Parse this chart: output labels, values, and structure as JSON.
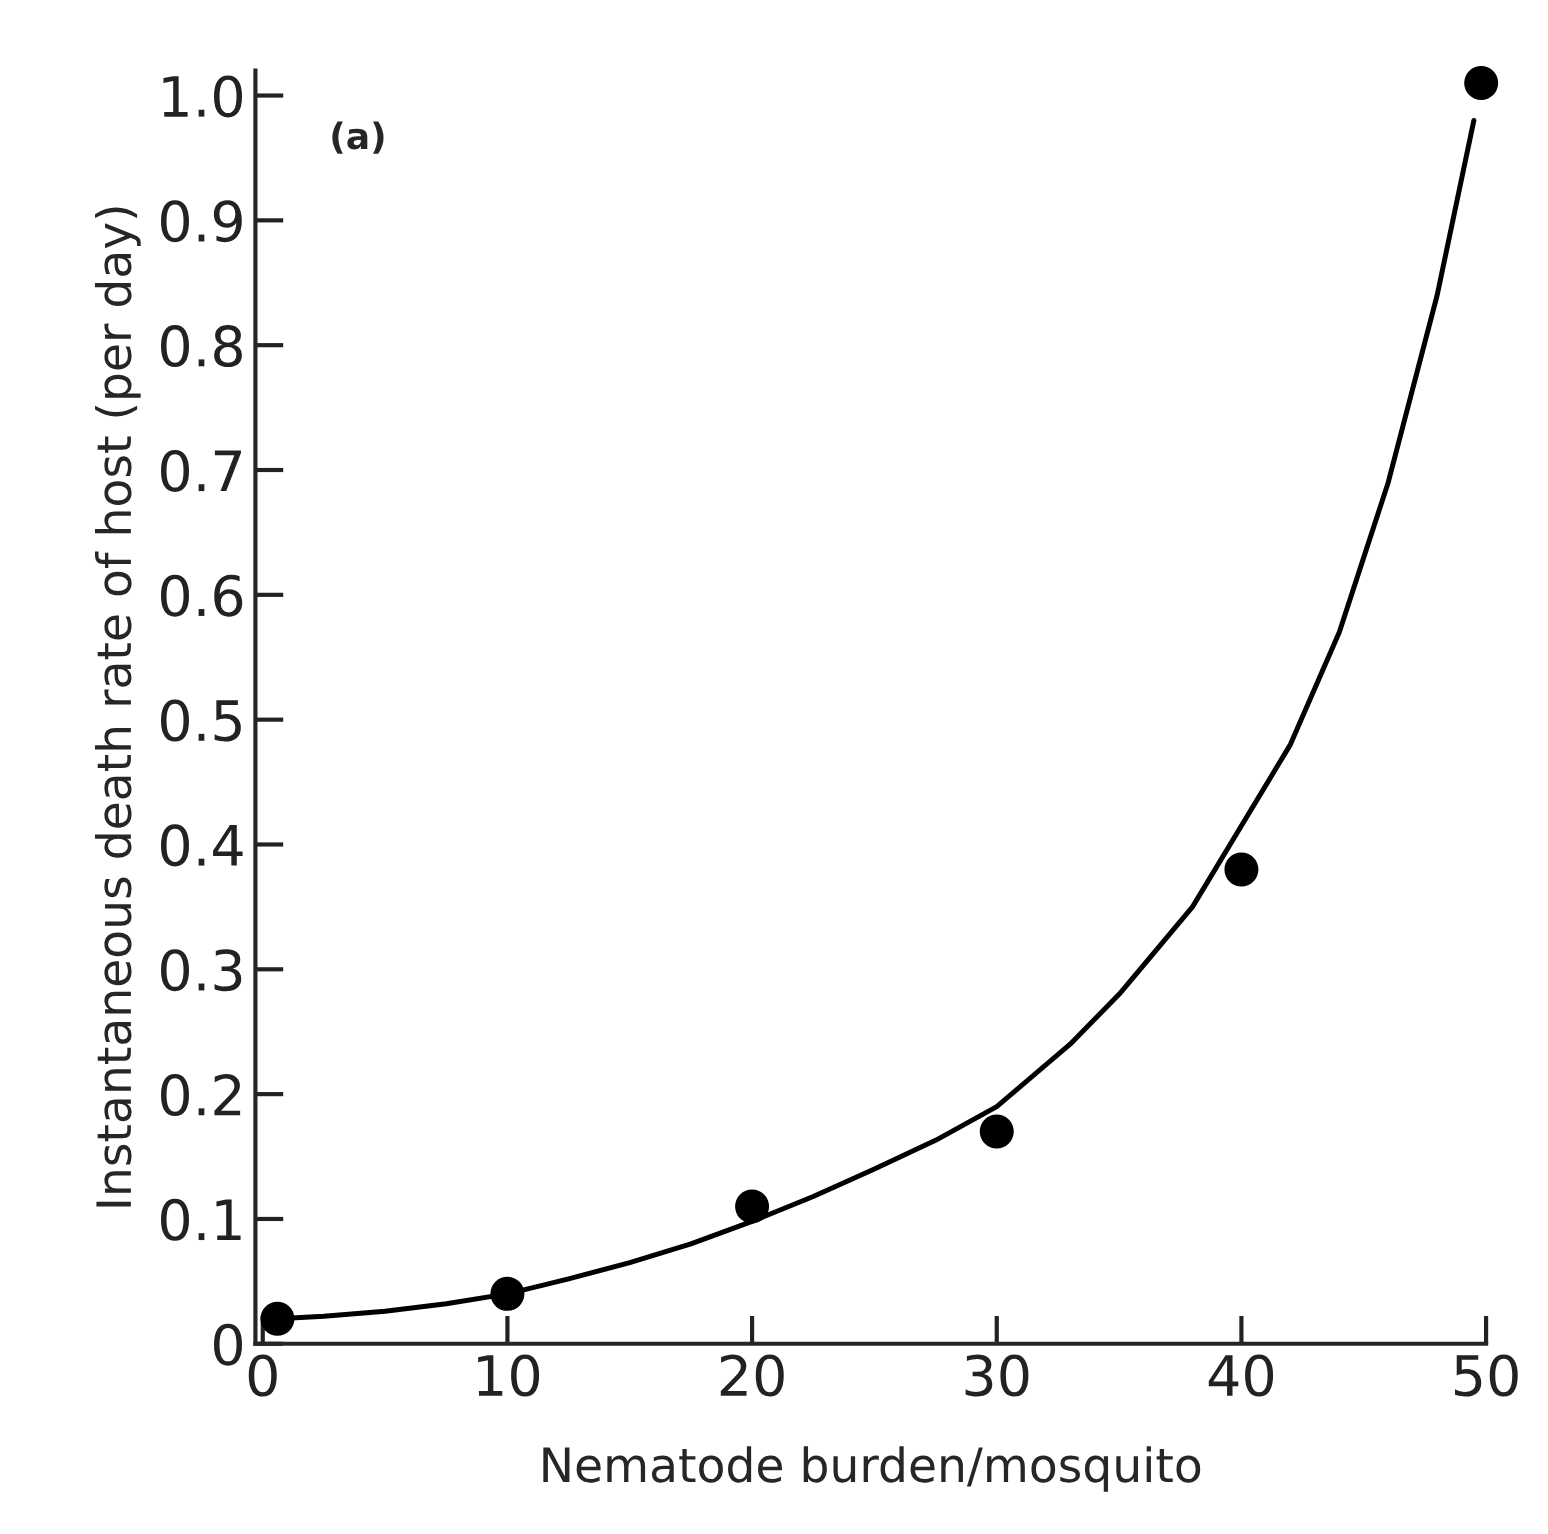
{
  "chart_data": {
    "type": "scatter",
    "xlabel": "Nematode burden/mosquito",
    "ylabel": "Instantaneous death rate of host (per day)",
    "annotations": [
      "(a)"
    ],
    "x": [
      0.6,
      10,
      20,
      30,
      40,
      49.8
    ],
    "series": [
      {
        "color": "#000000",
        "marker": "circle",
        "values": [
          0.02,
          0.04,
          0.11,
          0.17,
          0.38,
          1.01
        ]
      },
      {
        "type": "line",
        "color": "#000000",
        "line_style": "solid",
        "marker": "none",
        "x": [
          0.6,
          2.5,
          5,
          7.5,
          10,
          12.5,
          15,
          17.5,
          20,
          22.5,
          25,
          27.5,
          30,
          33,
          35,
          38,
          40,
          42,
          44,
          45,
          46,
          48,
          49.5
        ],
        "values": [
          0.02,
          0.022,
          0.026,
          0.032,
          0.04,
          0.052,
          0.065,
          0.08,
          0.098,
          0.118,
          0.14,
          0.163,
          0.19,
          0.24,
          0.28,
          0.35,
          0.415,
          0.48,
          0.57,
          0.63,
          0.69,
          0.84,
          0.98
        ]
      }
    ],
    "xlim": [
      -0.3,
      50
    ],
    "ylim": [
      0,
      1.02
    ],
    "xticks": [
      0,
      10,
      20,
      30,
      40,
      50
    ],
    "yticks": [
      0,
      0.1,
      0.2,
      0.3,
      0.4,
      0.5,
      0.6,
      0.7,
      0.8,
      0.9,
      {
        "value": 1,
        "label": "1.0"
      }
    ],
    "grid": false,
    "legend": false
  }
}
